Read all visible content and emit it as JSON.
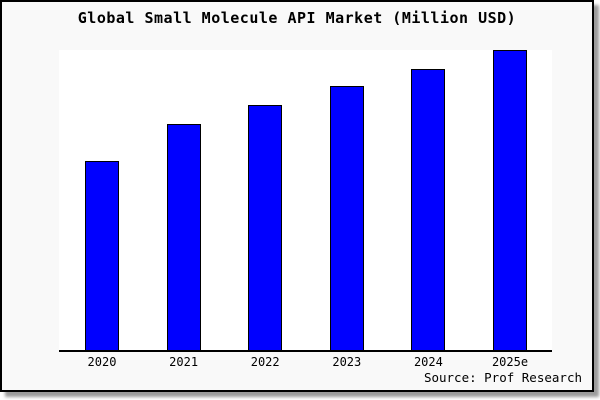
{
  "title": "Global Small Molecule API Market (Million USD)",
  "source_text": "Source: Prof Research",
  "colors": {
    "bar_fill": "#0000ff",
    "bar_border": "#000000",
    "plot_background": "#ffffff",
    "card_background": "#f9f9f9",
    "frame_border": "#000000",
    "text": "#000000"
  },
  "chart_data": {
    "type": "bar",
    "title": "Global Small Molecule API Market (Million USD)",
    "xlabel": "",
    "ylabel": "",
    "categories": [
      "2020",
      "2021",
      "2022",
      "2023",
      "2024",
      "2025e"
    ],
    "values": [
      63,
      75.2,
      81.7,
      87.9,
      93.8,
      100
    ],
    "values_note": "no y-axis scale shown; values are bar heights as percent of tallest (2025e) bar",
    "ylim": [
      0,
      100
    ],
    "grid": false,
    "y_axis_visible": false,
    "legend": null,
    "annotations": [
      "Source: Prof Research"
    ]
  }
}
